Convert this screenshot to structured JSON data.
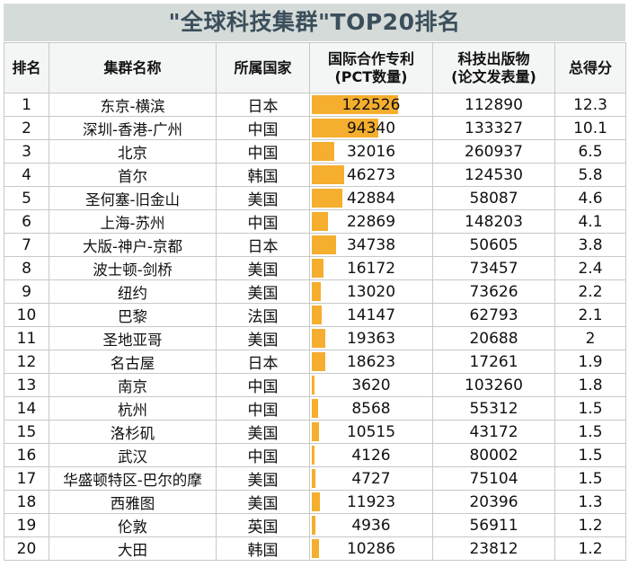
{
  "title": "\"全球科技集群\"TOP20排名",
  "headers": {
    "rank": "排名",
    "cluster": "集群名称",
    "country": "所属国家",
    "pct_line1": "国际合作专利",
    "pct_line2": "(PCT数量)",
    "papers_line1": "科技出版物",
    "papers_line2": "(论文发表量)",
    "score": "总得分"
  },
  "pct_max": 122526,
  "bar_color": "#f5ae2e",
  "rows": [
    {
      "rank": "1",
      "cluster": "东京-横滨",
      "country": "日本",
      "pct": 122526,
      "papers": "112890",
      "score": "12.3"
    },
    {
      "rank": "2",
      "cluster": "深圳-香港-广州",
      "country": "中国",
      "pct": 94340,
      "papers": "133327",
      "score": "10.1"
    },
    {
      "rank": "3",
      "cluster": "北京",
      "country": "中国",
      "pct": 32016,
      "papers": "260937",
      "score": "6.5"
    },
    {
      "rank": "4",
      "cluster": "首尔",
      "country": "韩国",
      "pct": 46273,
      "papers": "124530",
      "score": "5.8"
    },
    {
      "rank": "5",
      "cluster": "圣何塞-旧金山",
      "country": "美国",
      "pct": 42884,
      "papers": "58087",
      "score": "4.6"
    },
    {
      "rank": "6",
      "cluster": "上海-苏州",
      "country": "中国",
      "pct": 22869,
      "papers": "148203",
      "score": "4.1"
    },
    {
      "rank": "7",
      "cluster": "大版-神户-京都",
      "country": "日本",
      "pct": 34738,
      "papers": "50605",
      "score": "3.8"
    },
    {
      "rank": "8",
      "cluster": "波士顿-剑桥",
      "country": "美国",
      "pct": 16172,
      "papers": "73457",
      "score": "2.4"
    },
    {
      "rank": "9",
      "cluster": "纽约",
      "country": "美国",
      "pct": 13020,
      "papers": "73626",
      "score": "2.2"
    },
    {
      "rank": "10",
      "cluster": "巴黎",
      "country": "法国",
      "pct": 14147,
      "papers": "62793",
      "score": "2.1"
    },
    {
      "rank": "11",
      "cluster": "圣地亚哥",
      "country": "美国",
      "pct": 19363,
      "papers": "20688",
      "score": "2"
    },
    {
      "rank": "12",
      "cluster": "名古屋",
      "country": "日本",
      "pct": 18623,
      "papers": "17261",
      "score": "1.9"
    },
    {
      "rank": "13",
      "cluster": "南京",
      "country": "中国",
      "pct": 3620,
      "papers": "103260",
      "score": "1.8"
    },
    {
      "rank": "14",
      "cluster": "杭州",
      "country": "中国",
      "pct": 8568,
      "papers": "55312",
      "score": "1.5"
    },
    {
      "rank": "15",
      "cluster": "洛杉矶",
      "country": "美国",
      "pct": 10515,
      "papers": "43172",
      "score": "1.5"
    },
    {
      "rank": "16",
      "cluster": "武汉",
      "country": "中国",
      "pct": 4126,
      "papers": "80002",
      "score": "1.5"
    },
    {
      "rank": "17",
      "cluster": "华盛顿特区-巴尔的摩",
      "country": "美国",
      "pct": 4727,
      "papers": "75104",
      "score": "1.5"
    },
    {
      "rank": "18",
      "cluster": "西雅图",
      "country": "美国",
      "pct": 11923,
      "papers": "20396",
      "score": "1.3"
    },
    {
      "rank": "19",
      "cluster": "伦敦",
      "country": "英国",
      "pct": 4936,
      "papers": "56911",
      "score": "1.2"
    },
    {
      "rank": "20",
      "cluster": "大田",
      "country": "韩国",
      "pct": 10286,
      "papers": "23812",
      "score": "1.2"
    }
  ]
}
